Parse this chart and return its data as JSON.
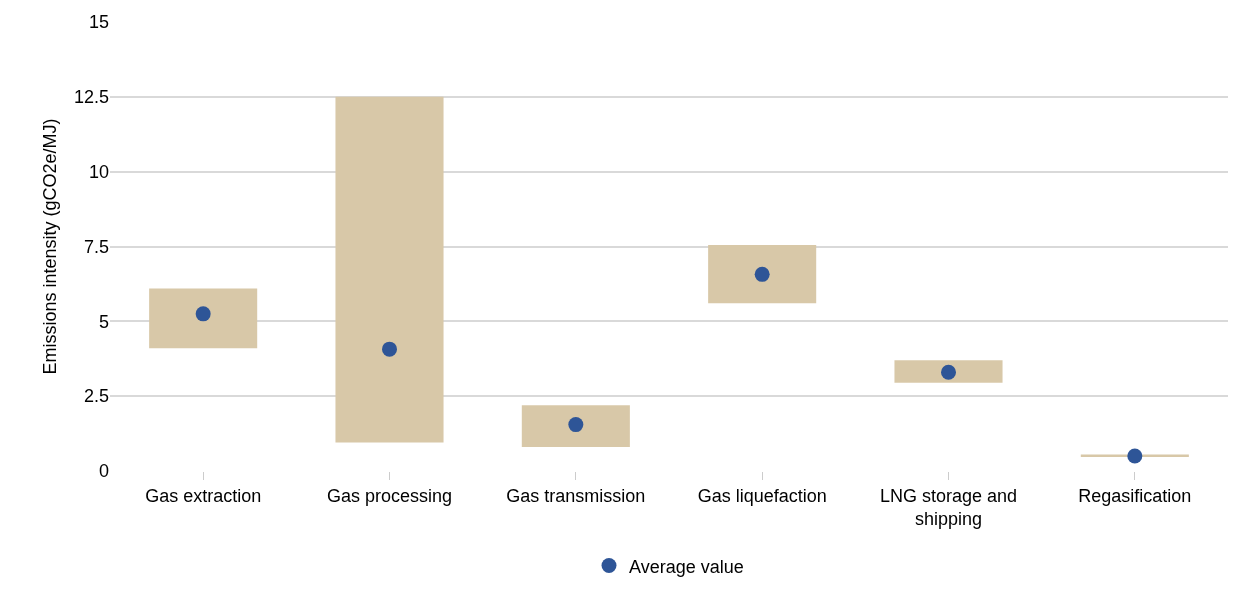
{
  "chart_data": {
    "type": "bar",
    "ylabel": "Emissions intensity (gCO2e/MJ)",
    "categories": [
      "Gas extraction",
      "Gas processing",
      "Gas transmission",
      "Gas liquefaction",
      "LNG storage and shipping",
      "Regasification"
    ],
    "series": [
      {
        "color": "#d8c8a8",
        "base": [
          4.1,
          0.95,
          0.8,
          5.6,
          2.95,
          0.5
        ],
        "values": [
          2.0,
          11.55,
          1.4,
          1.95,
          0.75,
          0.05
        ]
      },
      {
        "type": "scatter",
        "name": "Average value",
        "color": "#2e5597",
        "x": [
          "Gas extraction",
          "Gas processing",
          "Gas transmission",
          "Gas liquefaction",
          "LNG storage and shipping",
          "Regasification"
        ],
        "values": [
          5.25,
          4.07,
          1.55,
          6.57,
          3.3,
          0.5
        ]
      }
    ],
    "ylim": [
      0,
      15
    ],
    "yticks": [
      0,
      2.5,
      5,
      7.5,
      10,
      12.5,
      15
    ],
    "grid": "y",
    "legend": "bottom",
    "marker": "circle"
  }
}
